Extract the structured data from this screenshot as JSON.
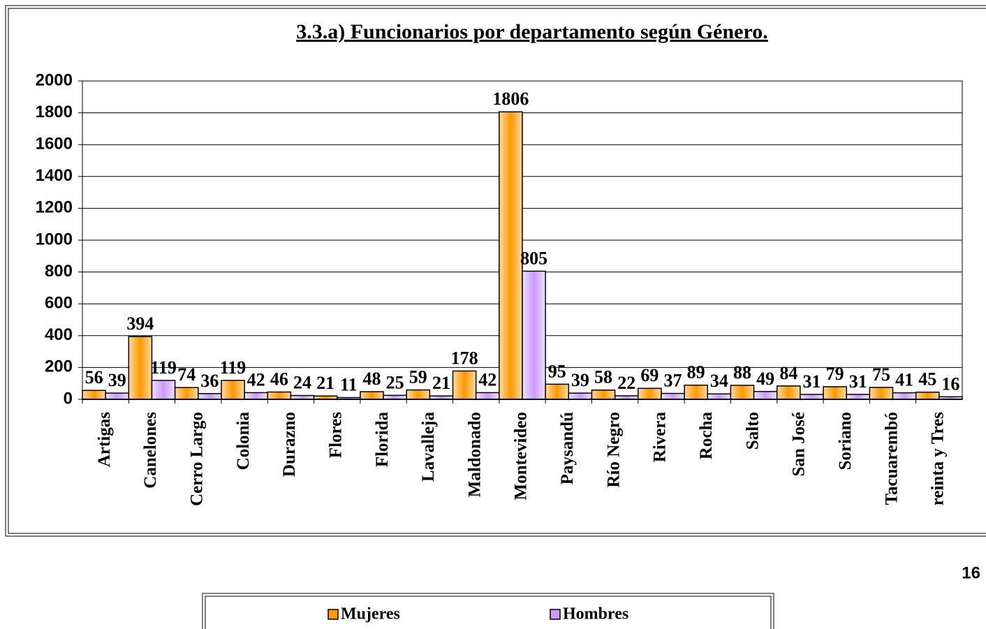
{
  "page_number": "16",
  "chart_data": {
    "type": "bar",
    "title": "3.3.a) Funcionarios por departamento según Género.",
    "categories": [
      "Artigas",
      "Canelones",
      "Cerro Largo",
      "Colonia",
      "Durazno",
      "Flores",
      "Florida",
      "Lavalleja",
      "Maldonado",
      "Montevideo",
      "Paysandú",
      "Río Negro",
      "Rivera",
      "Rocha",
      "Salto",
      "San José",
      "Soriano",
      "Tacuarembó",
      "reinta y Tres"
    ],
    "series": [
      {
        "name": "Mujeres",
        "color": "#ff9900",
        "values": [
          56,
          394,
          74,
          119,
          46,
          21,
          48,
          59,
          178,
          1806,
          95,
          58,
          69,
          89,
          88,
          84,
          79,
          75,
          45
        ]
      },
      {
        "name": "Hombres",
        "color": "#cc99ff",
        "values": [
          39,
          119,
          36,
          42,
          24,
          11,
          25,
          21,
          42,
          805,
          39,
          22,
          37,
          34,
          49,
          31,
          31,
          41,
          16
        ]
      }
    ],
    "ylim": [
      0,
      2000
    ],
    "yticks": [
      0,
      200,
      400,
      600,
      800,
      1000,
      1200,
      1400,
      1600,
      1800,
      2000
    ],
    "grid": true,
    "legend": "bottom"
  }
}
